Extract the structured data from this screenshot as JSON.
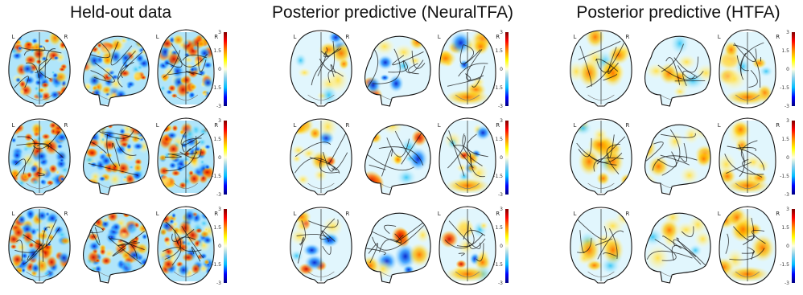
{
  "columns": [
    {
      "title": "Held-out data",
      "pattern": "heldout"
    },
    {
      "title": "Posterior predictive (NeuralTFA)",
      "pattern": "neuraltfa"
    },
    {
      "title": "Posterior predictive (HTFA)",
      "pattern": "htfa"
    }
  ],
  "row_count": 3,
  "views": [
    "coronal",
    "sagittal",
    "axial"
  ],
  "hemisphere_labels": {
    "left": "L",
    "right": "R"
  },
  "colorbar": {
    "ticks": [
      "3",
      "1.5",
      "0",
      "-1.5",
      "-3"
    ],
    "colormap": [
      "#800000",
      "#ff0000",
      "#ff8c00",
      "#ffff00",
      "#ffffcc",
      "#bfefff",
      "#00bfff",
      "#0000ff",
      "#000080"
    ]
  }
}
